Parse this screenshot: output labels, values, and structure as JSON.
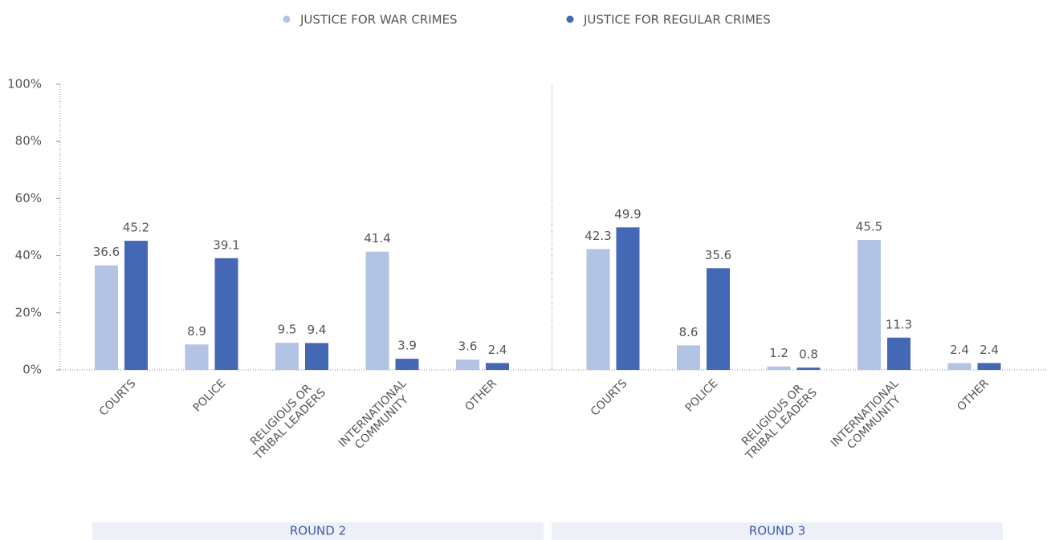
{
  "chart_data": {
    "type": "bar",
    "groups": [
      "ROUND 2",
      "ROUND 3"
    ],
    "categories": [
      "COURTS",
      "POLICE",
      "RELIGIOUS OR\nTRIBAL LEADERS",
      "INTERNATIONAL\nCOMMUNITY",
      "OTHER",
      "COURTS",
      "POLICE",
      "RELIGIOUS OR\nTRIBAL LEADERS",
      "INTERNATIONAL\nCOMMUNITY",
      "OTHER"
    ],
    "series": [
      {
        "name": "JUSTICE FOR WAR CRIMES",
        "color": "#b3c3e3",
        "values": [
          36.6,
          8.9,
          9.5,
          41.4,
          3.6,
          42.3,
          8.6,
          1.2,
          45.5,
          2.4
        ]
      },
      {
        "name": "JUSTICE FOR REGULAR CRIMES",
        "color": "#4468b4",
        "values": [
          45.2,
          39.1,
          9.4,
          3.9,
          2.4,
          49.9,
          35.6,
          0.8,
          11.3,
          2.4
        ]
      }
    ],
    "ylim": [
      0,
      100
    ],
    "yticks": [
      {
        "value": 0,
        "label": "0%"
      },
      {
        "value": 20,
        "label": "20%"
      },
      {
        "value": 40,
        "label": "40%"
      },
      {
        "value": 60,
        "label": "60%"
      },
      {
        "value": 80,
        "label": "80%"
      },
      {
        "value": 100,
        "label": "100%"
      }
    ]
  }
}
